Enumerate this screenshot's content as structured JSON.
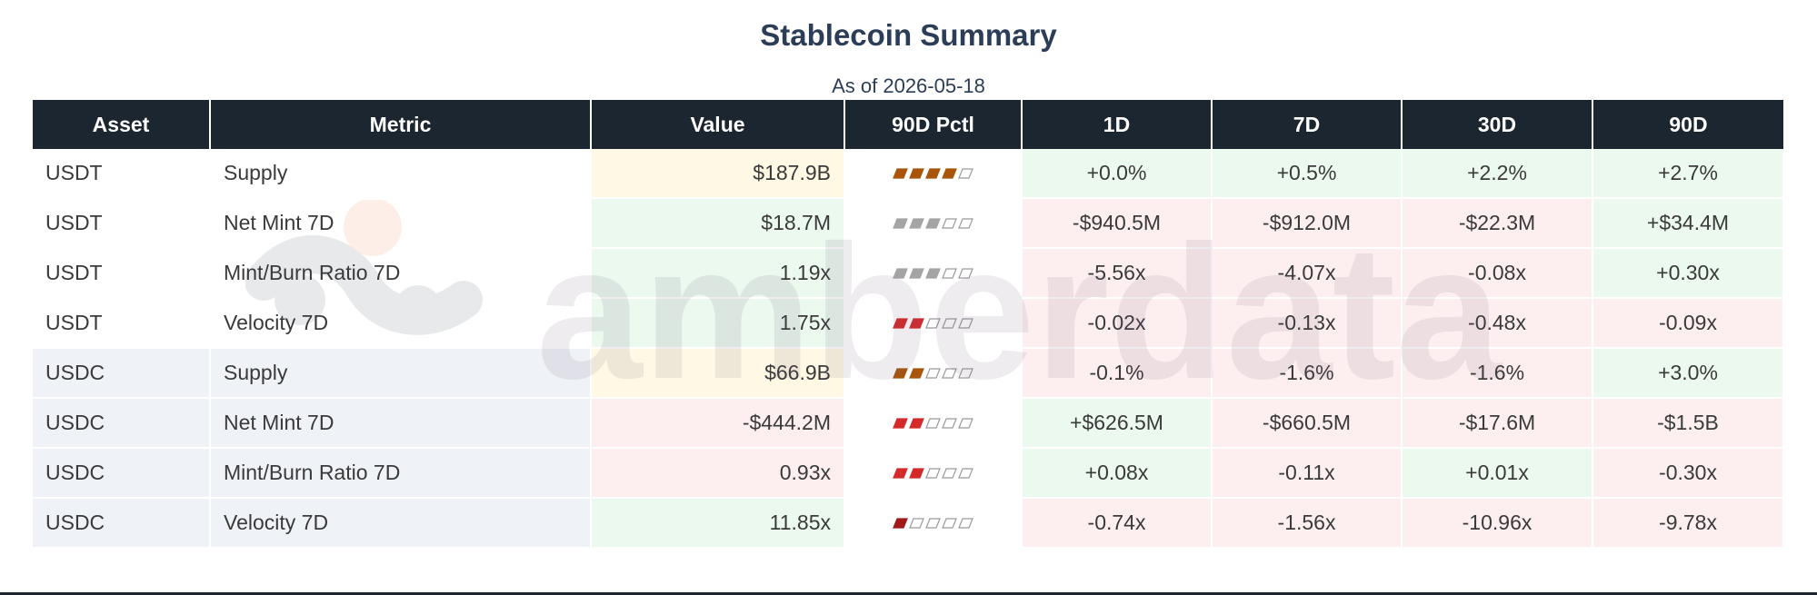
{
  "title": "Stablecoin Summary",
  "subtitle": "As of 2026-05-18",
  "watermark_text": "amberdata",
  "columns": [
    "Asset",
    "Metric",
    "Value",
    "90D Pctl",
    "1D",
    "7D",
    "30D",
    "90D"
  ],
  "colors": {
    "header_bg": "#1b2631",
    "title": "#2c3e57",
    "positive": "#23914a",
    "negative": "#c0343c",
    "amber": "#a8650e",
    "gray": "#a4a4a4"
  },
  "rows": [
    {
      "asset": "USDT",
      "metric": "Supply",
      "value": "$187.9B",
      "value_tone": "amber",
      "pctl": 4,
      "pctl_color": "#a8550a",
      "d1": "+0.0%",
      "d1_tone": "pos",
      "d7": "+0.5%",
      "d7_tone": "pos",
      "d30": "+2.2%",
      "d30_tone": "pos",
      "d90": "+2.7%",
      "d90_tone": "pos"
    },
    {
      "asset": "USDT",
      "metric": "Net Mint 7D",
      "value": "$18.7M",
      "value_tone": "pos",
      "pctl": 3,
      "pctl_color": "#a4a4a4",
      "d1": "-$940.5M",
      "d1_tone": "neg",
      "d7": "-$912.0M",
      "d7_tone": "neg",
      "d30": "-$22.3M",
      "d30_tone": "neg",
      "d90": "+$34.4M",
      "d90_tone": "pos"
    },
    {
      "asset": "USDT",
      "metric": "Mint/Burn Ratio 7D",
      "value": "1.19x",
      "value_tone": "pos",
      "pctl": 3,
      "pctl_color": "#a4a4a4",
      "d1": "-5.56x",
      "d1_tone": "neg",
      "d7": "-4.07x",
      "d7_tone": "neg",
      "d30": "-0.08x",
      "d30_tone": "neg",
      "d90": "+0.30x",
      "d90_tone": "pos"
    },
    {
      "asset": "USDT",
      "metric": "Velocity 7D",
      "value": "1.75x",
      "value_tone": "pos",
      "pctl": 2,
      "pctl_color": "#d42a2a",
      "d1": "-0.02x",
      "d1_tone": "neg",
      "d7": "-0.13x",
      "d7_tone": "neg",
      "d30": "-0.48x",
      "d30_tone": "neg",
      "d90": "-0.09x",
      "d90_tone": "neg"
    },
    {
      "asset": "USDC",
      "metric": "Supply",
      "value": "$66.9B",
      "value_tone": "amber",
      "pctl": 2,
      "pctl_color": "#a8550a",
      "d1": "-0.1%",
      "d1_tone": "neg",
      "d7": "-1.6%",
      "d7_tone": "neg",
      "d30": "-1.6%",
      "d30_tone": "neg",
      "d90": "+3.0%",
      "d90_tone": "pos"
    },
    {
      "asset": "USDC",
      "metric": "Net Mint 7D",
      "value": "-$444.2M",
      "value_tone": "neg",
      "pctl": 2,
      "pctl_color": "#d42a2a",
      "d1": "+$626.5M",
      "d1_tone": "pos",
      "d7": "-$660.5M",
      "d7_tone": "neg",
      "d30": "-$17.6M",
      "d30_tone": "neg",
      "d90": "-$1.5B",
      "d90_tone": "neg"
    },
    {
      "asset": "USDC",
      "metric": "Mint/Burn Ratio 7D",
      "value": "0.93x",
      "value_tone": "neg",
      "pctl": 2,
      "pctl_color": "#d42a2a",
      "d1": "+0.08x",
      "d1_tone": "pos",
      "d7": "-0.11x",
      "d7_tone": "neg",
      "d30": "+0.01x",
      "d30_tone": "pos",
      "d90": "-0.30x",
      "d90_tone": "neg"
    },
    {
      "asset": "USDC",
      "metric": "Velocity 7D",
      "value": "11.85x",
      "value_tone": "pos",
      "pctl": 1,
      "pctl_color": "#a11a1a",
      "d1": "-0.74x",
      "d1_tone": "neg",
      "d7": "-1.56x",
      "d7_tone": "neg",
      "d30": "-10.96x",
      "d30_tone": "neg",
      "d90": "-9.78x",
      "d90_tone": "neg"
    }
  ],
  "chart_data": {
    "type": "table",
    "title": "Stablecoin Summary",
    "subtitle": "As of 2026-05-18",
    "columns": [
      "Asset",
      "Metric",
      "Value",
      "90D Pctl",
      "1D",
      "7D",
      "30D",
      "90D"
    ],
    "pctl_scale_max": 5,
    "rows": [
      [
        "USDT",
        "Supply",
        "$187.9B",
        4,
        "+0.0%",
        "+0.5%",
        "+2.2%",
        "+2.7%"
      ],
      [
        "USDT",
        "Net Mint 7D",
        "$18.7M",
        3,
        "-$940.5M",
        "-$912.0M",
        "-$22.3M",
        "+$34.4M"
      ],
      [
        "USDT",
        "Mint/Burn Ratio 7D",
        "1.19x",
        3,
        "-5.56x",
        "-4.07x",
        "-0.08x",
        "+0.30x"
      ],
      [
        "USDT",
        "Velocity 7D",
        "1.75x",
        2,
        "-0.02x",
        "-0.13x",
        "-0.48x",
        "-0.09x"
      ],
      [
        "USDC",
        "Supply",
        "$66.9B",
        2,
        "-0.1%",
        "-1.6%",
        "-1.6%",
        "+3.0%"
      ],
      [
        "USDC",
        "Net Mint 7D",
        "-$444.2M",
        2,
        "+$626.5M",
        "-$660.5M",
        "-$17.6M",
        "-$1.5B"
      ],
      [
        "USDC",
        "Mint/Burn Ratio 7D",
        "0.93x",
        2,
        "+0.08x",
        "-0.11x",
        "+0.01x",
        "-0.30x"
      ],
      [
        "USDC",
        "Velocity 7D",
        "11.85x",
        1,
        "-0.74x",
        "-1.56x",
        "-10.96x",
        "-9.78x"
      ]
    ]
  }
}
